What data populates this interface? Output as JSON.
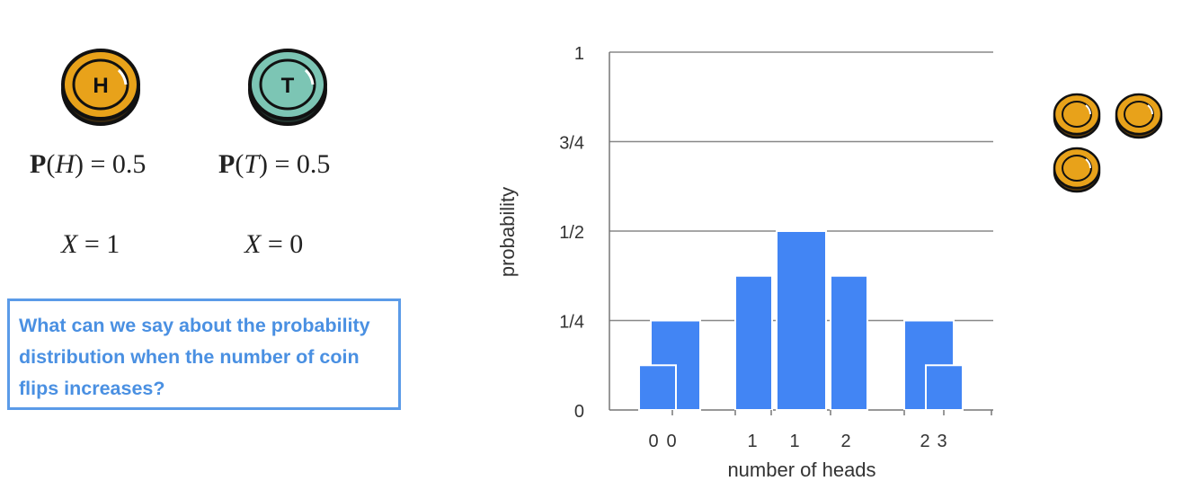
{
  "coins": {
    "heads": {
      "letter": "H",
      "color": "#e8a21a",
      "prob_label": "P",
      "var": "H",
      "eq": "= 0.5",
      "x_label": "X",
      "x_value": "= 1"
    },
    "tails": {
      "letter": "T",
      "color": "#7cc5b4",
      "prob_label": "P",
      "var": "T",
      "eq": "= 0.5",
      "x_label": "X",
      "x_value": "= 0"
    }
  },
  "question": "What can we say about the probability distribution when the number of coin flips increases?",
  "stack_coin_color": "#e8a21a",
  "chart_data": {
    "type": "bar",
    "xlabel": "number of heads",
    "ylabel": "probability",
    "ylim": [
      0,
      1
    ],
    "yticks": [
      {
        "value": 0,
        "label": "0"
      },
      {
        "value": 0.25,
        "label": "1/4"
      },
      {
        "value": 0.5,
        "label": "1/2"
      },
      {
        "value": 0.75,
        "label": "3/4"
      },
      {
        "value": 1,
        "label": "1"
      }
    ],
    "bar_color": "#4285f4",
    "series": [
      {
        "categories": [
          "0",
          "1"
        ],
        "values": [
          0.125,
          0.125
        ]
      },
      {
        "categories": [
          "0",
          "1",
          "2"
        ],
        "values": [
          0.25,
          0.5,
          0.25
        ]
      },
      {
        "categories": [
          "0",
          "1",
          "2",
          "3"
        ],
        "values": [
          0.25,
          0.375,
          0.375,
          0.25
        ]
      }
    ],
    "tick_labels": [
      "0",
      "0",
      "1",
      "1",
      "2",
      "2",
      "3"
    ]
  }
}
